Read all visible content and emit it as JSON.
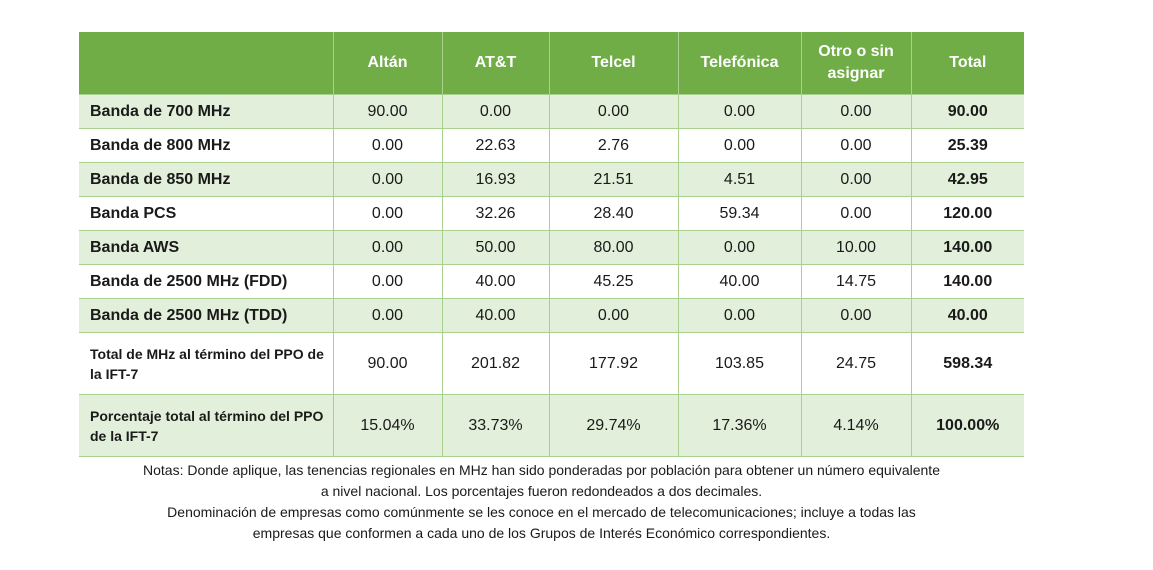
{
  "table": {
    "header": {
      "blank": "",
      "columns": [
        "Altán",
        "AT&T",
        "Telcel",
        "Telefónica",
        "Otro o sin asignar",
        "Total"
      ]
    },
    "rows": [
      {
        "label": "Banda de 700 MHz",
        "values": [
          "90.00",
          "0.00",
          "0.00",
          "0.00",
          "0.00"
        ],
        "total": "90.00"
      },
      {
        "label": "Banda de 800 MHz",
        "values": [
          "0.00",
          "22.63",
          "2.76",
          "0.00",
          "0.00"
        ],
        "total": "25.39"
      },
      {
        "label": "Banda de 850 MHz",
        "values": [
          "0.00",
          "16.93",
          "21.51",
          "4.51",
          "0.00"
        ],
        "total": "42.95"
      },
      {
        "label": "Banda PCS",
        "values": [
          "0.00",
          "32.26",
          "28.40",
          "59.34",
          "0.00"
        ],
        "total": "120.00"
      },
      {
        "label": "Banda AWS",
        "values": [
          "0.00",
          "50.00",
          "80.00",
          "0.00",
          "10.00"
        ],
        "total": "140.00"
      },
      {
        "label": "Banda de 2500 MHz (FDD)",
        "values": [
          "0.00",
          "40.00",
          "45.25",
          "40.00",
          "14.75"
        ],
        "total": "140.00"
      },
      {
        "label": "Banda de 2500 MHz (TDD)",
        "values": [
          "0.00",
          "40.00",
          "0.00",
          "0.00",
          "0.00"
        ],
        "total": "40.00"
      },
      {
        "label": "Total de MHz al término del PPO de la IFT-7",
        "values": [
          "90.00",
          "201.82",
          "177.92",
          "103.85",
          "24.75"
        ],
        "total": "598.34"
      },
      {
        "label": "Porcentaje total al término del PPO de la IFT-7",
        "values": [
          "15.04%",
          "33.73%",
          "29.74%",
          "17.36%",
          "4.14%"
        ],
        "total": "100.00%"
      }
    ]
  },
  "notes": {
    "line1": "Notas: Donde aplique, las tenencias regionales en MHz han sido ponderadas por población para obtener un número equivalente",
    "line2": "a nivel nacional. Los porcentajes fueron redondeados a dos decimales.",
    "line3": "Denominación de empresas como comúnmente se les conoce en el mercado de telecomunicaciones; incluye a todas las",
    "line4": "empresas que conformen a cada uno de los Grupos de Interés Económico correspondientes."
  },
  "colors": {
    "header_bg": "#70ad47",
    "band_row_bg": "#e2efda",
    "grid_line": "#a9d08e"
  }
}
